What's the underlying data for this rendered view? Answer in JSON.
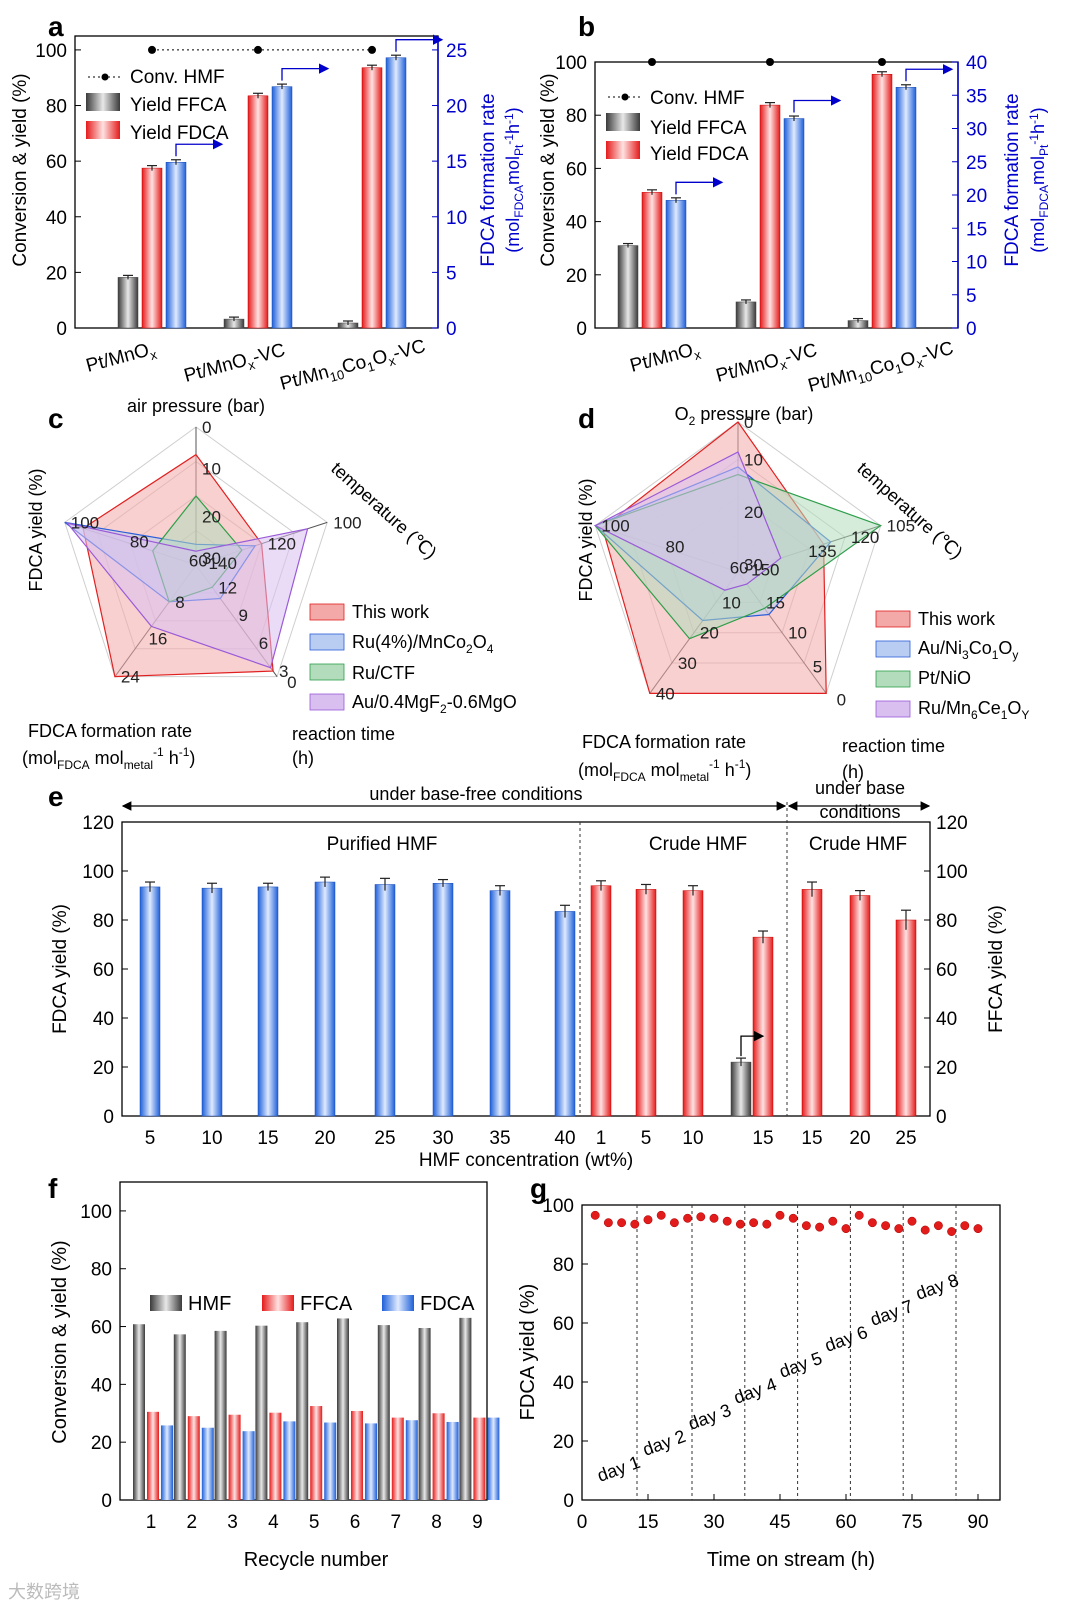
{
  "colors": {
    "grey": "#8c8c8c",
    "red": "#ee3b3b",
    "blue": "#3d7de8",
    "right_axis": "#0000cc",
    "this_work": "#f4a9a9",
    "ru_mnco": "#b9ccf2",
    "ru_ctf": "#b2dcbc",
    "au_mgf": "#d8bff0"
  },
  "watermark": "大数跨境",
  "chart_data": [
    {
      "panel": "a",
      "type": "bar",
      "categories": [
        "Pt/MnOx",
        "Pt/MnOx-VC",
        "Pt/Mn10Co1Ox-VC"
      ],
      "series": [
        {
          "name": "Conv. HMF",
          "values": [
            100,
            100,
            100
          ]
        },
        {
          "name": "Yield FFCA",
          "values": [
            18.2,
            3.2,
            1.8
          ]
        },
        {
          "name": "Yield FDCA",
          "values": [
            57.5,
            83.5,
            93.6
          ]
        },
        {
          "name": "FDCA formation rate",
          "axis": "right",
          "values": [
            14.9,
            21.7,
            24.3
          ]
        }
      ],
      "ylabel": "Conversion & yield (%)",
      "ylabel2_a": "FDCA formation rate",
      "ylabel2_b": "(molFDCAmolPt-1h-1)",
      "ylim": [
        0,
        105
      ],
      "yticks": [
        0,
        20,
        40,
        60,
        80,
        100
      ],
      "y2lim": [
        0,
        26.25
      ],
      "y2ticks": [
        0,
        5,
        10,
        15,
        20,
        25
      ]
    },
    {
      "panel": "b",
      "type": "bar",
      "categories": [
        "Pt/MnOx",
        "Pt/MnOx-VC",
        "Pt/Mn10Co1Ox-VC"
      ],
      "series": [
        {
          "name": "Conv. HMF",
          "values": [
            100,
            100,
            100
          ]
        },
        {
          "name": "Yield FFCA",
          "values": [
            31,
            9.8,
            2.8
          ]
        },
        {
          "name": "Yield FDCA",
          "values": [
            51,
            83.8,
            95.4
          ]
        },
        {
          "name": "FDCA formation rate",
          "axis": "right",
          "values": [
            19.2,
            31.5,
            36.2
          ]
        }
      ],
      "ylabel": "Conversion & yield (%)",
      "ylabel2_a": "FDCA formation rate",
      "ylabel2_b": "(molFDCAmolPt-1h-1)",
      "ylim": [
        0,
        100
      ],
      "yticks": [
        0,
        20,
        40,
        60,
        80,
        100
      ],
      "y2lim": [
        0,
        40
      ],
      "y2ticks": [
        0,
        5,
        10,
        15,
        20,
        25,
        30,
        35,
        40,
        45
      ]
    },
    {
      "panel": "c",
      "type": "radar",
      "axes": [
        {
          "label": "air pressure (bar)",
          "ticks": [
            "0",
            "10",
            "20",
            "30"
          ]
        },
        {
          "label": "temperature (°C)",
          "ticks": [
            "140",
            "120",
            "100"
          ]
        },
        {
          "label": "reaction time (h)",
          "ticks": [
            "12",
            "9",
            "6",
            "3",
            "0"
          ]
        },
        {
          "label": "FDCA formation rate (molFDCA molmetal-1 h-1)",
          "ticks": [
            "8",
            "16",
            "24"
          ]
        },
        {
          "label": "FDCA yield (%)",
          "ticks": [
            "60",
            "80",
            "100"
          ]
        }
      ],
      "series": [
        {
          "name": "This work",
          "values": [
            0.8,
            0.5,
            0.95,
            1.0,
            0.86
          ]
        },
        {
          "name": "Ru(4%)/MnCo2O4",
          "values": [
            0.15,
            0.45,
            0.3,
            0.33,
            1.0
          ]
        },
        {
          "name": "Ru/CTF",
          "values": [
            0.5,
            0.35,
            0.2,
            0.33,
            0.33
          ]
        },
        {
          "name": "Au/0.4MgF2-0.6MgO",
          "values": [
            0.1,
            0.85,
            0.92,
            0.55,
            0.98
          ]
        }
      ]
    },
    {
      "panel": "d",
      "type": "radar",
      "axes": [
        {
          "label": "O2 pressure (bar)",
          "ticks": [
            "0",
            "10",
            "20",
            "30"
          ]
        },
        {
          "label": "temperature (°C)",
          "ticks": [
            "150",
            "135",
            "120",
            "105"
          ]
        },
        {
          "label": "reaction time (h)",
          "ticks": [
            "15",
            "10",
            "5",
            "0"
          ]
        },
        {
          "label": "FDCA formation rate (molFDCA molmetal-1 h-1)",
          "ticks": [
            "10",
            "20",
            "30",
            "40"
          ]
        },
        {
          "label": "FDCA yield (%)",
          "ticks": [
            "60",
            "80",
            "100"
          ]
        }
      ],
      "series": [
        {
          "name": "This work",
          "values": [
            1.0,
            0.6,
            1.0,
            1.0,
            0.95
          ]
        },
        {
          "name": "Au/Ni3Co1Oy",
          "values": [
            0.7,
            0.65,
            0.35,
            0.4,
            1.0
          ]
        },
        {
          "name": "Pt/NiO",
          "values": [
            0.65,
            1.0,
            0.3,
            0.55,
            1.0
          ]
        },
        {
          "name": "Ru/Mn6Ce1OY",
          "values": [
            0.8,
            0.3,
            0.1,
            0.15,
            1.0
          ]
        }
      ]
    },
    {
      "panel": "e",
      "type": "bar",
      "xlabel": "HMF concentration (wt%)",
      "ylabel": "FDCA yield (%)",
      "y2label": "FFCA yield (%)",
      "ylim": [
        0,
        120
      ],
      "yticks": [
        0,
        20,
        40,
        60,
        80,
        100,
        120
      ],
      "groups": [
        {
          "label": "Purified HMF",
          "color": "blue",
          "x": [
            "5",
            "10",
            "15",
            "20",
            "25",
            "30",
            "35",
            "40"
          ],
          "values": [
            93.5,
            93,
            93.5,
            95.5,
            94.5,
            95,
            92,
            83.5
          ],
          "err": [
            2,
            2,
            1.5,
            2,
            2.5,
            1.5,
            2,
            2.5
          ]
        },
        {
          "label": "Crude HMF",
          "color": "red",
          "x": [
            "1",
            "5",
            "10",
            "15"
          ],
          "values": [
            94,
            92.5,
            92,
            73
          ],
          "err": [
            2,
            2,
            2,
            2.5
          ],
          "ffca": {
            "x": "15",
            "value": 22
          }
        },
        {
          "label": "Crude HMF",
          "color": "red",
          "x": [
            "15",
            "20",
            "25"
          ],
          "values": [
            92.5,
            90,
            80
          ],
          "err": [
            3,
            2,
            4
          ]
        }
      ],
      "brackets": {
        "base_free": "under base-free conditions",
        "base_a": "under base",
        "base_b": "conditions"
      }
    },
    {
      "panel": "f",
      "type": "bar",
      "xlabel": "Recycle number",
      "ylabel": "Conversion & yield (%)",
      "ylim": [
        0,
        110
      ],
      "yticks": [
        0,
        20,
        40,
        60,
        80,
        100
      ],
      "categories": [
        "1",
        "2",
        "3",
        "4",
        "5",
        "6",
        "7",
        "8",
        "9"
      ],
      "series": [
        {
          "name": "HMF",
          "values": [
            60.8,
            57.3,
            58.5,
            60.3,
            61.5,
            62.8,
            60.5,
            59.5,
            63
          ]
        },
        {
          "name": "FFCA",
          "values": [
            30.5,
            29,
            29.5,
            30.2,
            32.5,
            30.8,
            28.5,
            30,
            28.5
          ]
        },
        {
          "name": "FDCA",
          "values": [
            25.8,
            25,
            23.8,
            27.2,
            26.8,
            26.5,
            27.6,
            27,
            28.5
          ]
        }
      ]
    },
    {
      "panel": "g",
      "type": "scatter",
      "xlabel": "Time on stream (h)",
      "ylabel": "FDCA yield (%)",
      "xlim": [
        0,
        95
      ],
      "ylim": [
        0,
        100
      ],
      "xticks": [
        0,
        15,
        30,
        45,
        60,
        75,
        90
      ],
      "yticks": [
        0,
        20,
        40,
        60,
        80,
        100
      ],
      "x": [
        3,
        6,
        9,
        12,
        15,
        18,
        21,
        24,
        27,
        30,
        33,
        36,
        39,
        42,
        45,
        48,
        51,
        54,
        57,
        60,
        63,
        66,
        69,
        72,
        75,
        78,
        81,
        84,
        87,
        90
      ],
      "y": [
        96.5,
        94,
        94,
        93.5,
        95,
        96.5,
        94,
        95.5,
        96,
        95.5,
        94.5,
        93.5,
        94,
        93.5,
        96.5,
        95.5,
        93,
        92.5,
        94.5,
        92,
        96.5,
        94,
        93,
        92,
        94.5,
        91.5,
        93,
        91,
        93,
        92
      ],
      "day_lines": [
        12.5,
        25,
        37,
        49,
        61,
        73,
        85
      ],
      "day_labels": [
        "day 1",
        "day 2",
        "day 3",
        "day 4",
        "day 5",
        "day 6",
        "day 7",
        "day 8"
      ]
    }
  ],
  "a": {
    "letter": "a",
    "legend": [
      "Conv. HMF",
      "Yield FFCA",
      "Yield FDCA"
    ],
    "ylabel": "Conversion & yield (%)",
    "y2a": "FDCA formation rate",
    "y2b": "(mol",
    "y2b_sub": "FDCA",
    "y2b_mid": "mol",
    "y2b_sub2": "Pt",
    "y2b_sup": "-1",
    "y2b_end": "h",
    "y2b_sup2": "-1",
    "y2b_close": ")"
  },
  "b": {
    "letter": "b",
    "legend": [
      "Conv. HMF",
      "Yield FFCA",
      "Yield FDCA"
    ],
    "ylabel": "Conversion & yield (%)",
    "y2a": "FDCA formation rate",
    "y2b": "(mol",
    "y2b_sub": "FDCA",
    "y2b_mid": "mol",
    "y2b_sub2": "Pt",
    "y2b_sup": "-1",
    "y2b_end": "h",
    "y2b_sup2": "-1",
    "y2b_close": ")"
  },
  "cat_labels": [
    {
      "main": "Pt/MnO",
      "sub": "x",
      "end": ""
    },
    {
      "main": "Pt/MnO",
      "sub": "x",
      "end": "-VC"
    },
    {
      "pre": "Pt/Mn",
      "sub1": "10",
      "mid": "Co",
      "sub2": "1",
      "mid2": "O",
      "sub3": "x",
      "end": "-VC"
    }
  ],
  "c": {
    "letter": "c",
    "top": "air pressure (bar)",
    "right": "temperature (℃)",
    "bottom_right_a": "reaction time",
    "bottom_right_b": "(h)",
    "bottom_left_a": "FDCA formation rate",
    "bottom_left_b": "(mol",
    "bl_sub": "FDCA",
    "bl_mid": " mol",
    "bl_sub2": "metal",
    "bl_sup": "-1",
    "bl_end": " h",
    "bl_sup2": "-1",
    "bl_close": ")",
    "left": "FDCA yield (%)",
    "legend": [
      {
        "label": "Ru(4%)/MnCo",
        "sub": "2",
        "end": "O",
        "sub2": "4"
      },
      {
        "label": "Ru/CTF"
      },
      {
        "label": "Au/0.4MgF",
        "sub": "2",
        "end": "-0.6MgO"
      }
    ],
    "this_work": "This work"
  },
  "d": {
    "letter": "d",
    "top_pre": "O",
    "top_sub": "2",
    "top_end": " pressure (bar)",
    "right": "temperature (℃)",
    "bottom_right_a": "reaction time",
    "bottom_right_b": "(h)",
    "bottom_left_a": "FDCA formation rate",
    "bottom_left_b": "(mol",
    "bl_sub": "FDCA",
    "bl_mid": " mol",
    "bl_sub2": "metal",
    "bl_sup": "-1",
    "bl_end": " h",
    "bl_sup2": "-1",
    "bl_close": ")",
    "left": "FDCA yield (%)",
    "this_work": "This work",
    "l2": "Au/Ni",
    "l2s1": "3",
    "l2m": "Co",
    "l2s2": "1",
    "l2e": "O",
    "l2s3": "y",
    "l3": "Pt/NiO",
    "l4": "Ru/Mn",
    "l4s1": "6",
    "l4m": "Ce",
    "l4s2": "1",
    "l4e": "O",
    "l4s3": "Y"
  },
  "e": {
    "letter": "e"
  },
  "f": {
    "letter": "f",
    "legend": [
      "HMF",
      "FFCA",
      "FDCA"
    ]
  },
  "g": {
    "letter": "g"
  }
}
